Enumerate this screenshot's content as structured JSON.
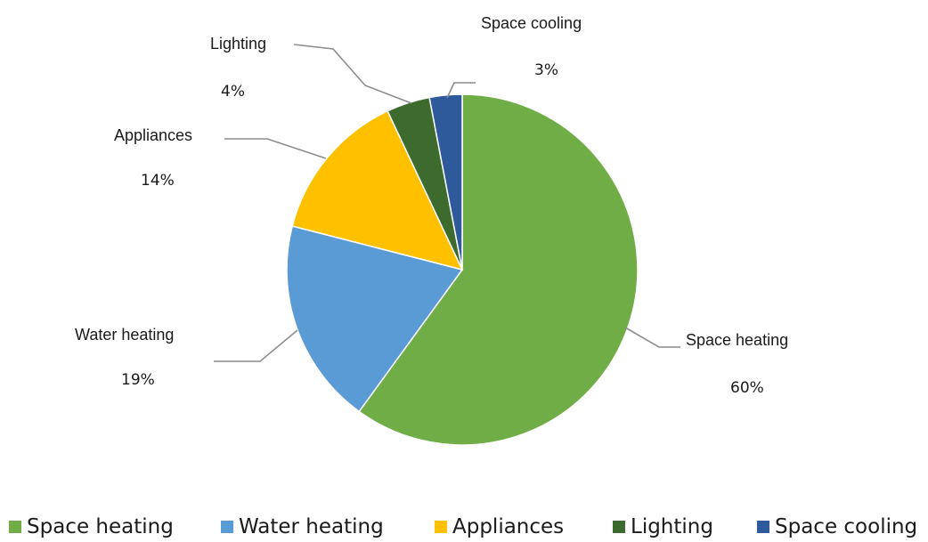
{
  "chart_data": {
    "type": "pie",
    "title": "",
    "start_angle_deg": 90,
    "direction": "clockwise",
    "slices": [
      {
        "name": "Space heating",
        "value": 60,
        "label": "60%",
        "color": "#70ad47"
      },
      {
        "name": "Water heating",
        "value": 19,
        "label": "19%",
        "color": "#5b9bd5"
      },
      {
        "name": "Appliances",
        "value": 14,
        "label": "14%",
        "color": "#ffc000"
      },
      {
        "name": "Lighting",
        "value": 4,
        "label": "4%",
        "color": "#3d6b2e"
      },
      {
        "name": "Space cooling",
        "value": 3,
        "label": "3%",
        "color": "#2e5a9c"
      }
    ],
    "legend_position": "bottom",
    "data_labels": "outside-with-leader-lines"
  }
}
